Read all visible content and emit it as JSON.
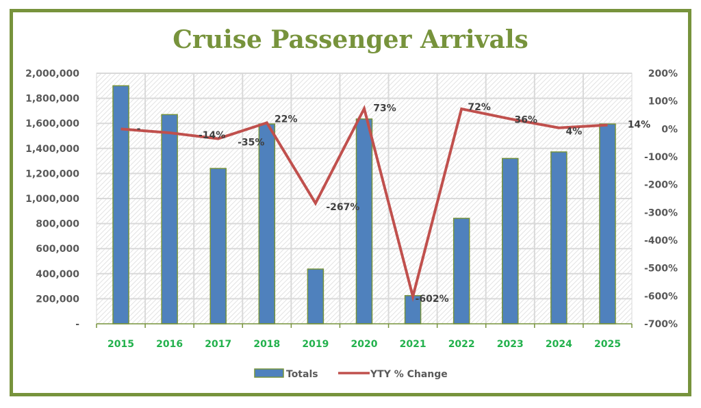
{
  "chart_data": {
    "type": "bar",
    "title": "Cruise Passenger Arrivals",
    "xlabel": "",
    "ylabel": "",
    "y2label": "",
    "categories": [
      "2015",
      "2016",
      "2017",
      "2018",
      "2019",
      "2020",
      "2021",
      "2022",
      "2023",
      "2024",
      "2025"
    ],
    "series": [
      {
        "name": "Totals",
        "type": "bar",
        "axis": "left",
        "color": "#4f81bd",
        "edge_color": "#77933c",
        "values": [
          1900000,
          1670000,
          1240000,
          1595000,
          437000,
          1635000,
          225000,
          842000,
          1320000,
          1372000,
          1595000
        ]
      },
      {
        "name": "YTY % Change",
        "type": "line",
        "axis": "right",
        "color": "#c0504d",
        "values": [
          0,
          -14,
          -35,
          22,
          -267,
          73,
          -602,
          72,
          36,
          4,
          14
        ],
        "data_labels": [
          "-",
          "-14%",
          "-35%",
          "22%",
          "-267%",
          "73%",
          "-602%",
          "72%",
          "36%",
          "4%",
          "14%"
        ]
      }
    ],
    "ylim": [
      0,
      2000000
    ],
    "y2lim": [
      -700,
      200
    ],
    "yticks": [
      "-",
      "200,000",
      "400,000",
      "600,000",
      "800,000",
      "1,000,000",
      "1,200,000",
      "1,400,000",
      "1,600,000",
      "1,800,000",
      "2,000,000"
    ],
    "y2ticks": [
      "-700%",
      "-600%",
      "-500%",
      "-400%",
      "-300%",
      "-200%",
      "-100%",
      "0%",
      "100%",
      "200%"
    ],
    "grid": true,
    "legend": {
      "position": "bottom",
      "entries": [
        "Totals",
        "YTY % Change"
      ]
    },
    "colors": {
      "title": "#77933c",
      "frame": "#77933c",
      "xtick": "#22b14c",
      "tick": "#595959"
    }
  }
}
